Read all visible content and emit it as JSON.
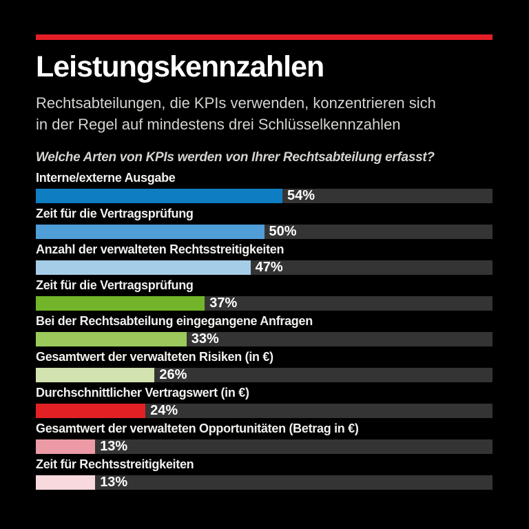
{
  "page": {
    "title": "Leistungskennzahlen",
    "subtitle_line1": "Rechtsabteilungen, die KPIs verwenden, konzentrieren sich",
    "subtitle_line2": "in der Regel auf mindestens drei Schlüsselkennzahlen",
    "question": "Welche Arten von KPIs werden von Ihrer Rechtsabteilung erfasst?"
  },
  "colors": {
    "background": "#000000",
    "accent_rule": "#e41e26",
    "track": "#343434",
    "title_text": "#ffffff",
    "subtitle_text": "#d6d4d1",
    "label_text": "#f2f0ee",
    "value_text": "#ffffff"
  },
  "chart_data": {
    "type": "bar",
    "orientation": "horizontal",
    "title": "Leistungskennzahlen",
    "subtitle": "Rechtsabteilungen, die KPIs verwenden, konzentrieren sich in der Regel auf mindestens drei Schlüsselkennzahlen",
    "question": "Welche Arten von KPIs werden von Ihrer Rechtsabteilung erfasst?",
    "unit": "%",
    "xlim": [
      0,
      100
    ],
    "grid": false,
    "legend": false,
    "categories": [
      "Interne/externe Ausgabe",
      "Zeit für die Vertragsprüfung",
      "Anzahl der verwalteten Rechtsstreitigkeiten",
      "Zeit für die Vertragsprüfung",
      "Bei der Rechtsabteilung eingegangene Anfragen",
      "Gesamtwert der verwalteten Risiken (in €)",
      "Durchschnittlicher Vertragswert (in €)",
      "Gesamtwert der verwalteten Opportunitäten (Betrag in €)",
      "Zeit für Rechtsstreitigkeiten"
    ],
    "values": [
      54,
      50,
      47,
      37,
      33,
      26,
      24,
      13,
      13
    ],
    "value_labels": [
      "54%",
      "50%",
      "47%",
      "37%",
      "33%",
      "26%",
      "24%",
      "13%",
      "13%"
    ],
    "bar_colors": [
      "#0f7dc2",
      "#4f9ed8",
      "#a6cde8",
      "#72b52a",
      "#9bc95c",
      "#d2e3b0",
      "#e32124",
      "#ec9ba6",
      "#f8d9de"
    ]
  }
}
